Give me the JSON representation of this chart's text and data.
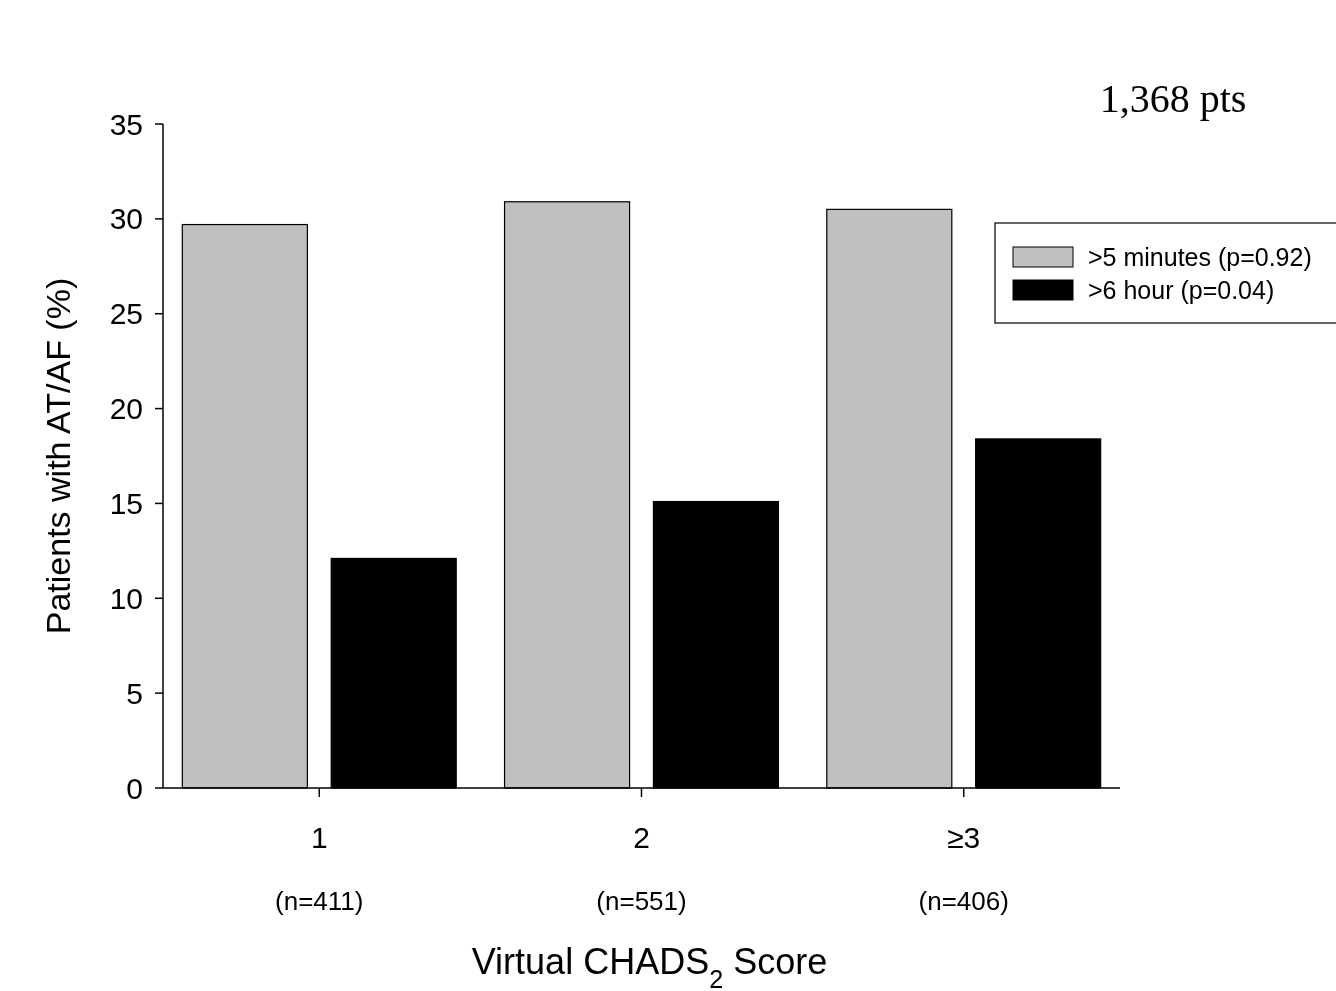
{
  "chart_data": {
    "type": "bar",
    "ylabel": "Patients with AT/AF (%)",
    "xlabel": "Virtual CHADS$_{2}$ Score",
    "annotations": [
      "1,368 pts"
    ],
    "categories": [
      "1\n(n=411)",
      "2\n(n=551)",
      "≥3\n(n=406)"
    ],
    "series": [
      {
        "name": ">5 minutes (p=0.92)",
        "color": "#c0c0c0",
        "values": [
          29.7,
          30.9,
          30.5
        ]
      },
      {
        "name": ">6 hour (p=0.04)",
        "color": "#000000",
        "values": [
          12.1,
          15.1,
          18.4
        ]
      }
    ],
    "ylim": [
      0,
      35
    ],
    "yticks": [
      0,
      5,
      10,
      15,
      20,
      25,
      30,
      35
    ],
    "grid": false,
    "legend": "top right"
  }
}
